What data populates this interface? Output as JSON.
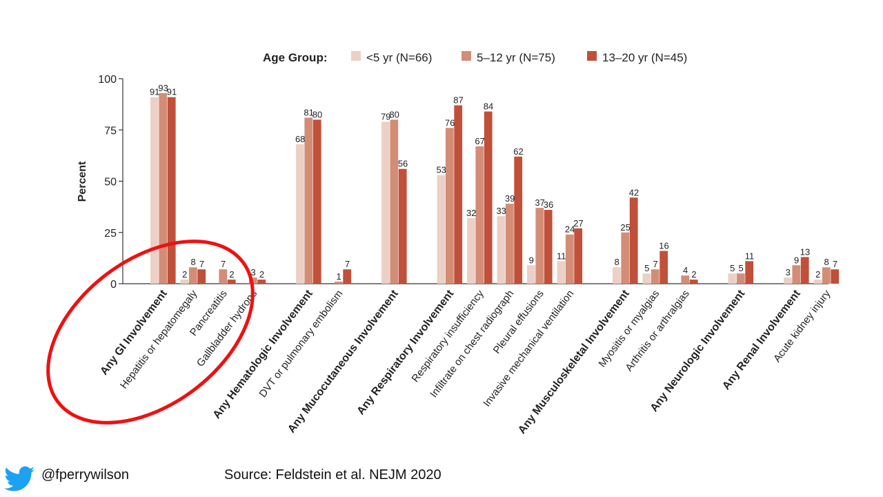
{
  "chart_data": {
    "type": "bar",
    "ylabel": "Percent",
    "ylim": [
      0,
      100
    ],
    "yticks": [
      0,
      25,
      50,
      75,
      100
    ],
    "legend_title": "Age Group:",
    "legend_placement": "top",
    "colors": [
      "#ecd0c5",
      "#d38d76",
      "#c0503a"
    ],
    "series": [
      {
        "name": "<5 yr (N=66)"
      },
      {
        "name": "5–12 yr (N=75)"
      },
      {
        "name": "13–20 yr (N=45)"
      }
    ],
    "groups": [
      {
        "name": "GI",
        "categories": [
          {
            "label": "Any GI Involvement",
            "bold": true,
            "values": [
              91,
              93,
              91
            ]
          },
          {
            "label": "Hepatitis or hepatomegaly",
            "bold": false,
            "values": [
              2,
              8,
              7
            ]
          },
          {
            "label": "Pancreatitis",
            "bold": false,
            "values": [
              null,
              7,
              2
            ]
          },
          {
            "label": "Gallbladder hydrops",
            "bold": false,
            "values": [
              null,
              3,
              2
            ]
          }
        ]
      },
      {
        "name": "Hematologic",
        "categories": [
          {
            "label": "Any Hematologic Involvement",
            "bold": true,
            "values": [
              68,
              81,
              80
            ]
          },
          {
            "label": "DVT or pulmonary embolism",
            "bold": false,
            "values": [
              null,
              1,
              7
            ]
          }
        ]
      },
      {
        "name": "Mucocutaneous",
        "categories": [
          {
            "label": "Any Mucocutaneous Involvement",
            "bold": true,
            "values": [
              79,
              80,
              56
            ]
          }
        ]
      },
      {
        "name": "Respiratory",
        "categories": [
          {
            "label": "Any Respiratory Involvement",
            "bold": true,
            "values": [
              53,
              76,
              87
            ]
          },
          {
            "label": "Respiratory insufficiency",
            "bold": false,
            "values": [
              32,
              67,
              84
            ]
          },
          {
            "label": "Infiltrate on chest radiograph",
            "bold": false,
            "values": [
              33,
              39,
              62
            ]
          },
          {
            "label": "Pleural effusions",
            "bold": false,
            "values": [
              9,
              37,
              36
            ]
          },
          {
            "label": "Invasive mechanical ventilation",
            "bold": false,
            "values": [
              11,
              24,
              27
            ]
          }
        ]
      },
      {
        "name": "Musculoskeletal",
        "categories": [
          {
            "label": "Any Musculoskeletal Involvement",
            "bold": true,
            "values": [
              8,
              25,
              42
            ]
          },
          {
            "label": "Myositis or myalgias",
            "bold": false,
            "values": [
              5,
              7,
              16
            ]
          },
          {
            "label": "Arthritis or arthralgias",
            "bold": false,
            "values": [
              null,
              4,
              2
            ]
          }
        ]
      },
      {
        "name": "Neurologic",
        "categories": [
          {
            "label": "Any Neurologic Involvement",
            "bold": true,
            "values": [
              5,
              5,
              11
            ]
          }
        ]
      },
      {
        "name": "Renal",
        "categories": [
          {
            "label": "Any Renal Involvement",
            "bold": true,
            "values": [
              3,
              9,
              13
            ]
          },
          {
            "label": "Acute kidney injury",
            "bold": false,
            "values": [
              2,
              8,
              7
            ]
          }
        ]
      }
    ]
  },
  "annotation": {
    "type": "ellipse",
    "color": "#ee1111",
    "note": "red circle highlighting GI involvement categories"
  },
  "footer": {
    "twitter_handle": "@fperrywilson",
    "source": "Source: Feldstein et al. NEJM 2020",
    "twitter_icon": "twitter-bird-icon",
    "twitter_color": "#1da1f2"
  }
}
